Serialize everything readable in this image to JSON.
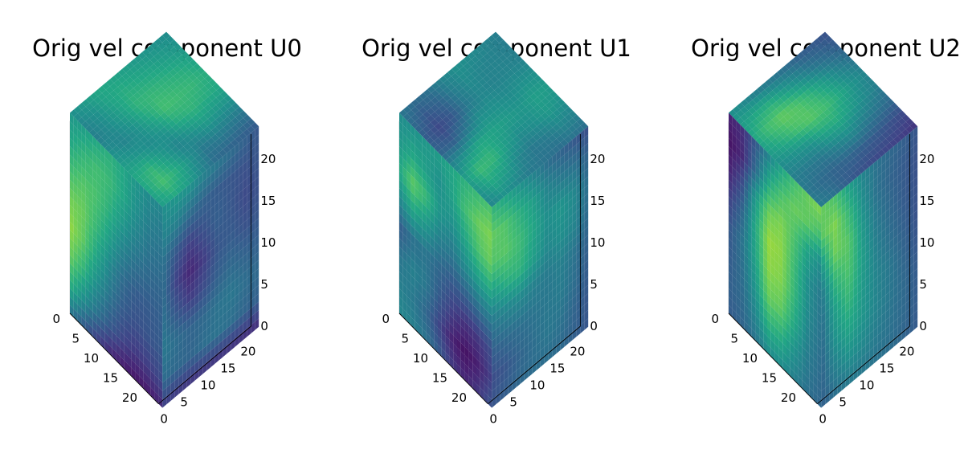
{
  "chart_data": [
    {
      "type": "heatmap",
      "title": "Orig vel component U0",
      "grid_size": [
        24,
        24,
        24
      ],
      "xlim": [
        0,
        23
      ],
      "ylim": [
        0,
        23
      ],
      "zlim": [
        0,
        23
      ],
      "x_ticks": [
        "0",
        "5",
        "10",
        "15",
        "20"
      ],
      "y_ticks": [
        "0",
        "5",
        "10",
        "15",
        "20"
      ],
      "z_ticks": [
        "0",
        "5",
        "10",
        "15",
        "20"
      ],
      "colormap": "viridis",
      "top_face": [
        [
          0.5,
          0.45,
          0.42,
          0.5,
          0.55,
          0.6,
          0.58,
          0.55
        ],
        [
          0.55,
          0.5,
          0.48,
          0.45,
          0.52,
          0.65,
          0.7,
          0.6
        ],
        [
          0.6,
          0.58,
          0.55,
          0.5,
          0.48,
          0.55,
          0.62,
          0.55
        ],
        [
          0.58,
          0.62,
          0.65,
          0.6,
          0.52,
          0.45,
          0.5,
          0.45
        ],
        [
          0.55,
          0.6,
          0.66,
          0.7,
          0.62,
          0.5,
          0.4,
          0.35
        ],
        [
          0.52,
          0.58,
          0.64,
          0.68,
          0.65,
          0.55,
          0.42,
          0.32
        ],
        [
          0.5,
          0.55,
          0.62,
          0.66,
          0.62,
          0.52,
          0.4,
          0.3
        ],
        [
          0.48,
          0.52,
          0.58,
          0.62,
          0.6,
          0.5,
          0.38,
          0.28
        ]
      ],
      "left_face": [
        [
          0.55,
          0.58,
          0.62,
          0.66,
          0.62,
          0.55,
          0.5,
          0.48
        ],
        [
          0.62,
          0.68,
          0.72,
          0.7,
          0.62,
          0.52,
          0.45,
          0.42
        ],
        [
          0.72,
          0.76,
          0.74,
          0.66,
          0.55,
          0.46,
          0.4,
          0.38
        ],
        [
          0.82,
          0.8,
          0.7,
          0.58,
          0.45,
          0.38,
          0.35,
          0.34
        ],
        [
          0.88,
          0.78,
          0.62,
          0.48,
          0.36,
          0.3,
          0.3,
          0.32
        ],
        [
          0.8,
          0.68,
          0.52,
          0.4,
          0.3,
          0.26,
          0.28,
          0.3
        ],
        [
          0.66,
          0.52,
          0.4,
          0.3,
          0.22,
          0.18,
          0.2,
          0.24
        ],
        [
          0.4,
          0.3,
          0.2,
          0.12,
          0.08,
          0.06,
          0.08,
          0.12
        ]
      ],
      "right_face": [
        [
          0.55,
          0.6,
          0.58,
          0.5,
          0.45,
          0.4,
          0.35,
          0.3
        ],
        [
          0.5,
          0.48,
          0.4,
          0.35,
          0.32,
          0.3,
          0.28,
          0.3
        ],
        [
          0.42,
          0.3,
          0.22,
          0.28,
          0.34,
          0.3,
          0.25,
          0.28
        ],
        [
          0.4,
          0.22,
          0.12,
          0.2,
          0.3,
          0.32,
          0.28,
          0.3
        ],
        [
          0.42,
          0.3,
          0.2,
          0.26,
          0.34,
          0.38,
          0.35,
          0.34
        ],
        [
          0.45,
          0.4,
          0.36,
          0.38,
          0.42,
          0.44,
          0.4,
          0.38
        ],
        [
          0.4,
          0.38,
          0.36,
          0.4,
          0.42,
          0.4,
          0.36,
          0.34
        ],
        [
          0.2,
          0.18,
          0.16,
          0.16,
          0.15,
          0.15,
          0.14,
          0.14
        ]
      ]
    },
    {
      "type": "heatmap",
      "title": "Orig vel component U1",
      "grid_size": [
        24,
        24,
        24
      ],
      "xlim": [
        0,
        23
      ],
      "ylim": [
        0,
        23
      ],
      "zlim": [
        0,
        23
      ],
      "x_ticks": [
        "0",
        "5",
        "10",
        "15",
        "20"
      ],
      "y_ticks": [
        "0",
        "5",
        "10",
        "15",
        "20"
      ],
      "z_ticks": [
        "0",
        "5",
        "10",
        "15",
        "20"
      ],
      "colormap": "viridis",
      "top_face": [
        [
          0.4,
          0.35,
          0.3,
          0.32,
          0.45,
          0.55,
          0.5,
          0.45
        ],
        [
          0.35,
          0.28,
          0.22,
          0.3,
          0.52,
          0.68,
          0.6,
          0.5
        ],
        [
          0.38,
          0.32,
          0.28,
          0.4,
          0.6,
          0.66,
          0.55,
          0.45
        ],
        [
          0.45,
          0.42,
          0.4,
          0.5,
          0.58,
          0.55,
          0.45,
          0.4
        ],
        [
          0.5,
          0.48,
          0.46,
          0.5,
          0.55,
          0.48,
          0.4,
          0.38
        ],
        [
          0.48,
          0.45,
          0.44,
          0.48,
          0.52,
          0.5,
          0.42,
          0.36
        ],
        [
          0.45,
          0.44,
          0.45,
          0.5,
          0.56,
          0.54,
          0.46,
          0.38
        ],
        [
          0.42,
          0.42,
          0.44,
          0.5,
          0.55,
          0.5,
          0.44,
          0.36
        ]
      ],
      "left_face": [
        [
          0.5,
          0.52,
          0.55,
          0.58,
          0.62,
          0.66,
          0.7,
          0.74
        ],
        [
          0.55,
          0.62,
          0.58,
          0.52,
          0.6,
          0.72,
          0.8,
          0.84
        ],
        [
          0.62,
          0.78,
          0.7,
          0.55,
          0.52,
          0.62,
          0.74,
          0.8
        ],
        [
          0.48,
          0.6,
          0.55,
          0.45,
          0.42,
          0.5,
          0.58,
          0.62
        ],
        [
          0.3,
          0.38,
          0.4,
          0.35,
          0.3,
          0.32,
          0.38,
          0.42
        ],
        [
          0.4,
          0.45,
          0.42,
          0.3,
          0.2,
          0.15,
          0.18,
          0.25
        ],
        [
          0.45,
          0.42,
          0.35,
          0.22,
          0.1,
          0.05,
          0.1,
          0.2
        ],
        [
          0.48,
          0.45,
          0.4,
          0.3,
          0.18,
          0.12,
          0.18,
          0.28
        ]
      ],
      "right_face": [
        [
          0.72,
          0.64,
          0.56,
          0.48,
          0.4,
          0.35,
          0.3,
          0.26
        ],
        [
          0.84,
          0.8,
          0.7,
          0.62,
          0.5,
          0.45,
          0.42,
          0.35
        ],
        [
          0.8,
          0.82,
          0.76,
          0.66,
          0.55,
          0.58,
          0.52,
          0.4
        ],
        [
          0.62,
          0.7,
          0.72,
          0.62,
          0.52,
          0.55,
          0.5,
          0.38
        ],
        [
          0.45,
          0.5,
          0.52,
          0.48,
          0.45,
          0.48,
          0.42,
          0.34
        ],
        [
          0.34,
          0.38,
          0.4,
          0.42,
          0.44,
          0.46,
          0.4,
          0.32
        ],
        [
          0.26,
          0.3,
          0.36,
          0.4,
          0.44,
          0.42,
          0.36,
          0.3
        ],
        [
          0.3,
          0.34,
          0.38,
          0.4,
          0.4,
          0.38,
          0.34,
          0.3
        ]
      ]
    },
    {
      "type": "heatmap",
      "title": "Orig vel component U2",
      "grid_size": [
        24,
        24,
        24
      ],
      "xlim": [
        0,
        23
      ],
      "ylim": [
        0,
        23
      ],
      "zlim": [
        0,
        23
      ],
      "x_ticks": [
        "0",
        "5",
        "10",
        "15",
        "20"
      ],
      "y_ticks": [
        "0",
        "5",
        "10",
        "15",
        "20"
      ],
      "z_ticks": [
        "0",
        "5",
        "10",
        "15",
        "20"
      ],
      "colormap": "viridis",
      "top_face": [
        [
          0.5,
          0.55,
          0.6,
          0.55,
          0.48,
          0.42,
          0.4,
          0.42
        ],
        [
          0.45,
          0.6,
          0.7,
          0.62,
          0.5,
          0.4,
          0.35,
          0.38
        ],
        [
          0.4,
          0.62,
          0.76,
          0.7,
          0.52,
          0.4,
          0.32,
          0.3
        ],
        [
          0.38,
          0.55,
          0.72,
          0.74,
          0.6,
          0.45,
          0.32,
          0.25
        ],
        [
          0.35,
          0.48,
          0.64,
          0.7,
          0.62,
          0.48,
          0.3,
          0.22
        ],
        [
          0.3,
          0.4,
          0.55,
          0.62,
          0.55,
          0.42,
          0.28,
          0.2
        ],
        [
          0.28,
          0.35,
          0.45,
          0.52,
          0.48,
          0.38,
          0.25,
          0.18
        ],
        [
          0.25,
          0.3,
          0.38,
          0.45,
          0.42,
          0.34,
          0.22,
          0.15
        ]
      ],
      "left_face": [
        [
          0.1,
          0.15,
          0.28,
          0.45,
          0.6,
          0.72,
          0.8,
          0.86
        ],
        [
          0.05,
          0.12,
          0.35,
          0.62,
          0.74,
          0.8,
          0.78,
          0.72
        ],
        [
          0.1,
          0.25,
          0.55,
          0.8,
          0.84,
          0.74,
          0.6,
          0.5
        ],
        [
          0.2,
          0.35,
          0.62,
          0.88,
          0.86,
          0.7,
          0.52,
          0.42
        ],
        [
          0.28,
          0.4,
          0.6,
          0.86,
          0.84,
          0.68,
          0.5,
          0.4
        ],
        [
          0.3,
          0.38,
          0.55,
          0.8,
          0.78,
          0.62,
          0.46,
          0.38
        ],
        [
          0.32,
          0.36,
          0.48,
          0.66,
          0.64,
          0.52,
          0.42,
          0.36
        ],
        [
          0.3,
          0.34,
          0.4,
          0.5,
          0.5,
          0.44,
          0.38,
          0.34
        ]
      ],
      "right_face": [
        [
          0.86,
          0.78,
          0.62,
          0.5,
          0.42,
          0.38,
          0.34,
          0.3
        ],
        [
          0.82,
          0.9,
          0.74,
          0.55,
          0.42,
          0.36,
          0.32,
          0.28
        ],
        [
          0.6,
          0.86,
          0.82,
          0.6,
          0.45,
          0.38,
          0.32,
          0.28
        ],
        [
          0.45,
          0.72,
          0.8,
          0.62,
          0.48,
          0.4,
          0.34,
          0.28
        ],
        [
          0.4,
          0.62,
          0.74,
          0.6,
          0.5,
          0.44,
          0.36,
          0.3
        ],
        [
          0.38,
          0.56,
          0.66,
          0.58,
          0.5,
          0.44,
          0.38,
          0.32
        ],
        [
          0.36,
          0.48,
          0.56,
          0.52,
          0.46,
          0.42,
          0.38,
          0.32
        ],
        [
          0.34,
          0.4,
          0.44,
          0.44,
          0.42,
          0.4,
          0.36,
          0.32
        ]
      ]
    }
  ]
}
